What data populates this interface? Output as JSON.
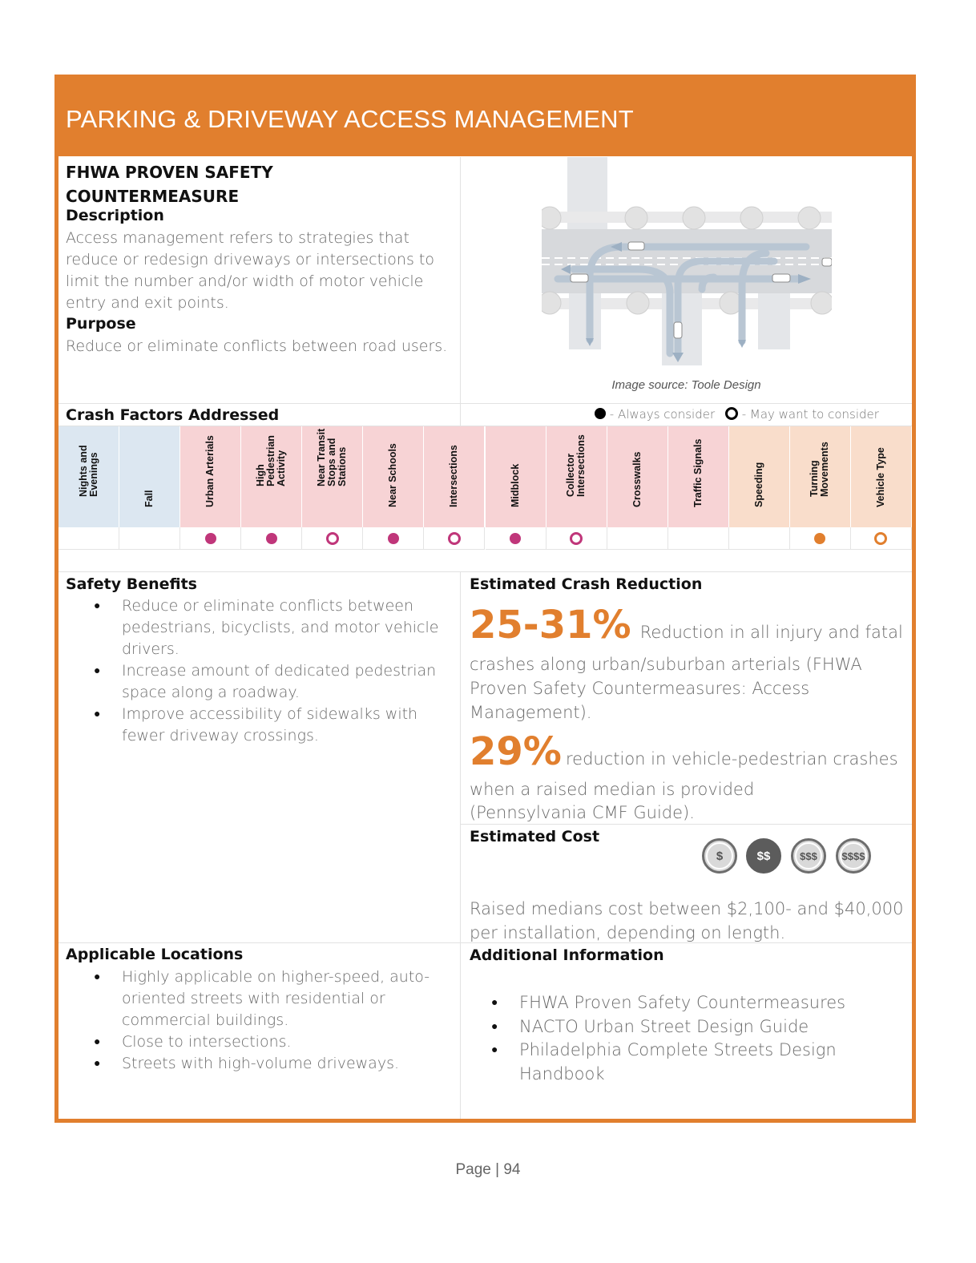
{
  "title": "PARKING & DRIVEWAY ACCESS MANAGEMENT",
  "fhwa_heading": "FHWA PROVEN SAFETY COUNTERMEASURE",
  "description": {
    "heading": "Description",
    "text": "Access management refers to strategies that reduce or redesign driveways or intersections to limit the number and/or width of motor vehicle entry and exit points."
  },
  "purpose": {
    "heading": "Purpose",
    "text": "Reduce or eliminate conflicts between road users."
  },
  "image_caption": "Image source: Toole Design",
  "crash_factors": {
    "heading": "Crash Factors Addressed",
    "legend_always": " - Always consider",
    "legend_may": " - May want to consider",
    "columns": [
      {
        "label": "Nights and\nEvenings",
        "group": "blue",
        "mark": "none"
      },
      {
        "label": "Fall",
        "group": "blue",
        "mark": "none"
      },
      {
        "label": "Urban Arterials",
        "group": "pink",
        "mark": "always"
      },
      {
        "label": "High\nPedestrian\nActivity",
        "group": "pink",
        "mark": "always"
      },
      {
        "label": "Near Transit\nStops and\nStations",
        "group": "pink",
        "mark": "may"
      },
      {
        "label": "Near Schools",
        "group": "pink",
        "mark": "always"
      },
      {
        "label": "Intersections",
        "group": "pink",
        "mark": "may"
      },
      {
        "label": "Midblock",
        "group": "pink",
        "mark": "always"
      },
      {
        "label": "Collector\nIntersections",
        "group": "pink",
        "mark": "may"
      },
      {
        "label": "Crosswalks",
        "group": "pink",
        "mark": "none"
      },
      {
        "label": "Traffic Signals",
        "group": "pink",
        "mark": "none"
      },
      {
        "label": "Speeding",
        "group": "orange",
        "mark": "none"
      },
      {
        "label": "Turning\nMovements",
        "group": "orange",
        "mark": "always"
      },
      {
        "label": "Vehicle Type",
        "group": "orange",
        "mark": "may"
      }
    ],
    "colors": {
      "blue": "#DCE7F1",
      "pink": "#F7D3D5",
      "orange": "#F9DDCB",
      "magenta_dot": "#C0367A",
      "orange_dot": "#E17F2E"
    }
  },
  "safety_benefits": {
    "heading": "Safety Benefits",
    "items": [
      "Reduce or eliminate conflicts between pedestrians, bicyclists, and motor vehicle drivers.",
      "Increase amount of dedicated pedestrian space along a roadway.",
      "Improve accessibility of sidewalks with fewer driveway crossings."
    ]
  },
  "crash_reduction": {
    "heading": "Estimated Crash Reduction",
    "stat1_value": "25-31%",
    "stat1_text_inline": "Reduction in all injury and fatal",
    "stat1_text_rest": "crashes along urban/suburban arterials (FHWA Proven Safety Countermeasures: Access Management).",
    "stat2_value": "29%",
    "stat2_text_inline": "reduction in vehicle-pedestrian crashes",
    "stat2_text_rest": "when a raised median is provided (Pennsylvania CMF Guide)."
  },
  "cost": {
    "heading": "Estimated Cost",
    "levels": [
      "$",
      "$$",
      "$$$",
      "$$$$"
    ],
    "selected_level": "$$",
    "text": "Raised medians cost between $2,100- and $40,000 per installation, depending on length."
  },
  "applicable_locations": {
    "heading": "Applicable Locations",
    "items": [
      "Highly applicable on higher-speed, auto-oriented streets with residential or commercial buildings.",
      "Close to intersections.",
      "Streets with high-volume driveways."
    ]
  },
  "additional_info": {
    "heading": "Additional Information",
    "items": [
      "FHWA Proven Safety Countermeasures",
      "NACTO Urban Street Design Guide",
      "Philadelphia Complete Streets Design Handbook"
    ]
  },
  "footer": "Page | 94"
}
